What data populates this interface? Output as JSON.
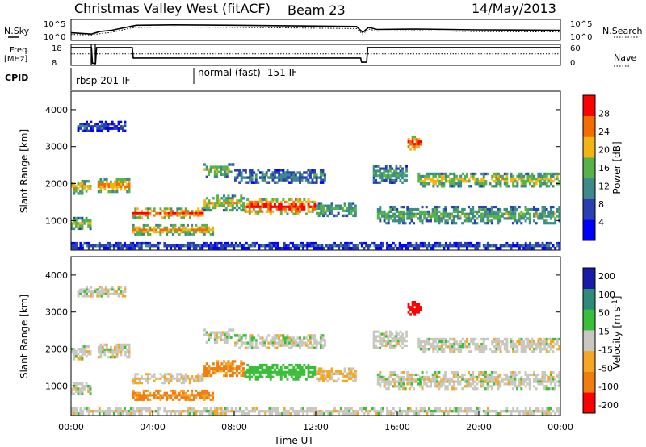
{
  "header": {
    "title": "Christmas Valley West (fitACF)",
    "beam": "Beam 23",
    "date": "14/May/2013"
  },
  "chart_data": [
    {
      "type": "line",
      "panel": "noise",
      "left_label": "N.Sky",
      "right_label": "N.Search",
      "left_ticks": [
        "10^5",
        "10^0"
      ],
      "right_ticks": [
        "10^5",
        "10^0"
      ],
      "x": [
        0,
        1,
        1.4,
        2,
        2.9,
        3.2,
        5,
        8,
        10,
        12,
        14,
        14.3,
        14.6,
        15,
        17,
        20,
        24
      ],
      "series": [
        {
          "values": [
            1.8,
            1.5,
            2.1,
            2.4,
            3.3,
            3.6,
            3.7,
            3.6,
            3.5,
            3.4,
            3.3,
            1.9,
            3.1,
            2.6,
            2.7,
            2.5,
            2.4
          ]
        },
        {
          "values": [
            1.4,
            1.3,
            1.6,
            1.9,
            2.9,
            3.1,
            3.2,
            3.1,
            3.0,
            2.9,
            2.8,
            1.5,
            2.7,
            2.2,
            2.3,
            2.1,
            2.0
          ]
        }
      ],
      "ylim": [
        0,
        5
      ]
    },
    {
      "type": "line",
      "panel": "frequency",
      "left_label": "Freq. [MHz]",
      "right_label": "Nave",
      "left_ticks": [
        "18",
        "8"
      ],
      "right_ticks": [
        "60",
        "0"
      ],
      "x": [
        0,
        1,
        1.05,
        1.2,
        1.25,
        3.0,
        3.05,
        14.2,
        14.25,
        14.5,
        14.55,
        24
      ],
      "series": [
        {
          "values": [
            16.5,
            16.5,
            9,
            9,
            16.5,
            16.5,
            11.5,
            11.5,
            9.5,
            9.5,
            16.5,
            16.5
          ]
        }
      ],
      "nave": 33,
      "ylim": [
        8,
        18
      ]
    },
    {
      "type": "heatmap",
      "panel": "power",
      "ylabel": "Slant Range [km]",
      "yticks": [
        1000,
        2000,
        3000,
        4000
      ],
      "ylim": [
        200,
        4500
      ],
      "colorbar_label": "Power [dB]",
      "colorbar_ticks": [
        4,
        8,
        12,
        16,
        20,
        24,
        28
      ],
      "colorbar_range": [
        0,
        32
      ],
      "colors": [
        "#0000ff",
        "#2a3fb0",
        "#3e8a8a",
        "#56b24a",
        "#f2b417",
        "#f46d00",
        "#ff0000"
      ]
    },
    {
      "type": "heatmap",
      "panel": "velocity",
      "ylabel": "Slant Range [km]",
      "yticks": [
        1000,
        2000,
        3000,
        4000
      ],
      "ylim": [
        200,
        4500
      ],
      "xlabel": "Time UT",
      "xticks": [
        "00:00",
        "04:00",
        "08:00",
        "12:00",
        "16:00",
        "20:00",
        "00:00"
      ],
      "xlim": [
        0,
        24
      ],
      "colorbar_label": "Velocity [m s^-1]",
      "colorbar_ticks": [
        "200",
        "100",
        "50",
        "15",
        "-15",
        "-50",
        "-100",
        "-200"
      ],
      "colors": [
        "#1a1aa8",
        "#2e8b7a",
        "#3bbf3b",
        "#c8c8c0",
        "#f5a623",
        "#f07d10",
        "#ff0000"
      ]
    }
  ],
  "cpid": {
    "label": "CPID",
    "mode_a": "rbsp 201 IF",
    "mode_b": "normal (fast) -151 IF"
  },
  "scatter_regions": [
    {
      "t0": 0.0,
      "t1": 1.0,
      "r0": 1700,
      "r1": 2100,
      "p": 20,
      "v": 0
    },
    {
      "t0": 0.0,
      "t1": 1.0,
      "r0": 750,
      "r1": 1100,
      "p": 16,
      "v": 0
    },
    {
      "t0": 1.3,
      "t1": 2.9,
      "r0": 1750,
      "r1": 2150,
      "p": 22,
      "v": 0
    },
    {
      "t0": 3.0,
      "t1": 6.5,
      "r0": 1050,
      "r1": 1350,
      "p": 24,
      "v": -10
    },
    {
      "t0": 6.5,
      "t1": 8.5,
      "r0": 1250,
      "r1": 1700,
      "p": 18,
      "v": -60
    },
    {
      "t0": 8.5,
      "t1": 12.0,
      "r0": 1150,
      "r1": 1600,
      "p": 26,
      "v": 40
    },
    {
      "t0": 12.0,
      "t1": 14.0,
      "r0": 1100,
      "r1": 1500,
      "p": 14,
      "v": -20
    },
    {
      "t0": 3.0,
      "t1": 7.0,
      "r0": 600,
      "r1": 900,
      "p": 20,
      "v": -60
    },
    {
      "t0": 6.5,
      "t1": 8.0,
      "r0": 2150,
      "r1": 2550,
      "p": 16,
      "v": 0
    },
    {
      "t0": 8.0,
      "t1": 12.5,
      "r0": 2000,
      "r1": 2400,
      "p": 10,
      "v": 0
    },
    {
      "t0": 14.8,
      "t1": 16.5,
      "r0": 2000,
      "r1": 2500,
      "p": 12,
      "v": 0
    },
    {
      "t0": 16.5,
      "t1": 17.2,
      "r0": 2900,
      "r1": 3300,
      "p": 26,
      "v": -150
    },
    {
      "t0": 17.0,
      "t1": 24.0,
      "r0": 1900,
      "r1": 2300,
      "p": 18,
      "v": 0
    },
    {
      "t0": 15.0,
      "t1": 24.0,
      "r0": 900,
      "r1": 1400,
      "p": 14,
      "v": 0
    },
    {
      "t0": 0.0,
      "t1": 24.0,
      "r0": 220,
      "r1": 420,
      "p": 6,
      "v": 0
    },
    {
      "t0": 0.3,
      "t1": 2.7,
      "r0": 3400,
      "r1": 3700,
      "p": 6,
      "v": 0
    }
  ]
}
